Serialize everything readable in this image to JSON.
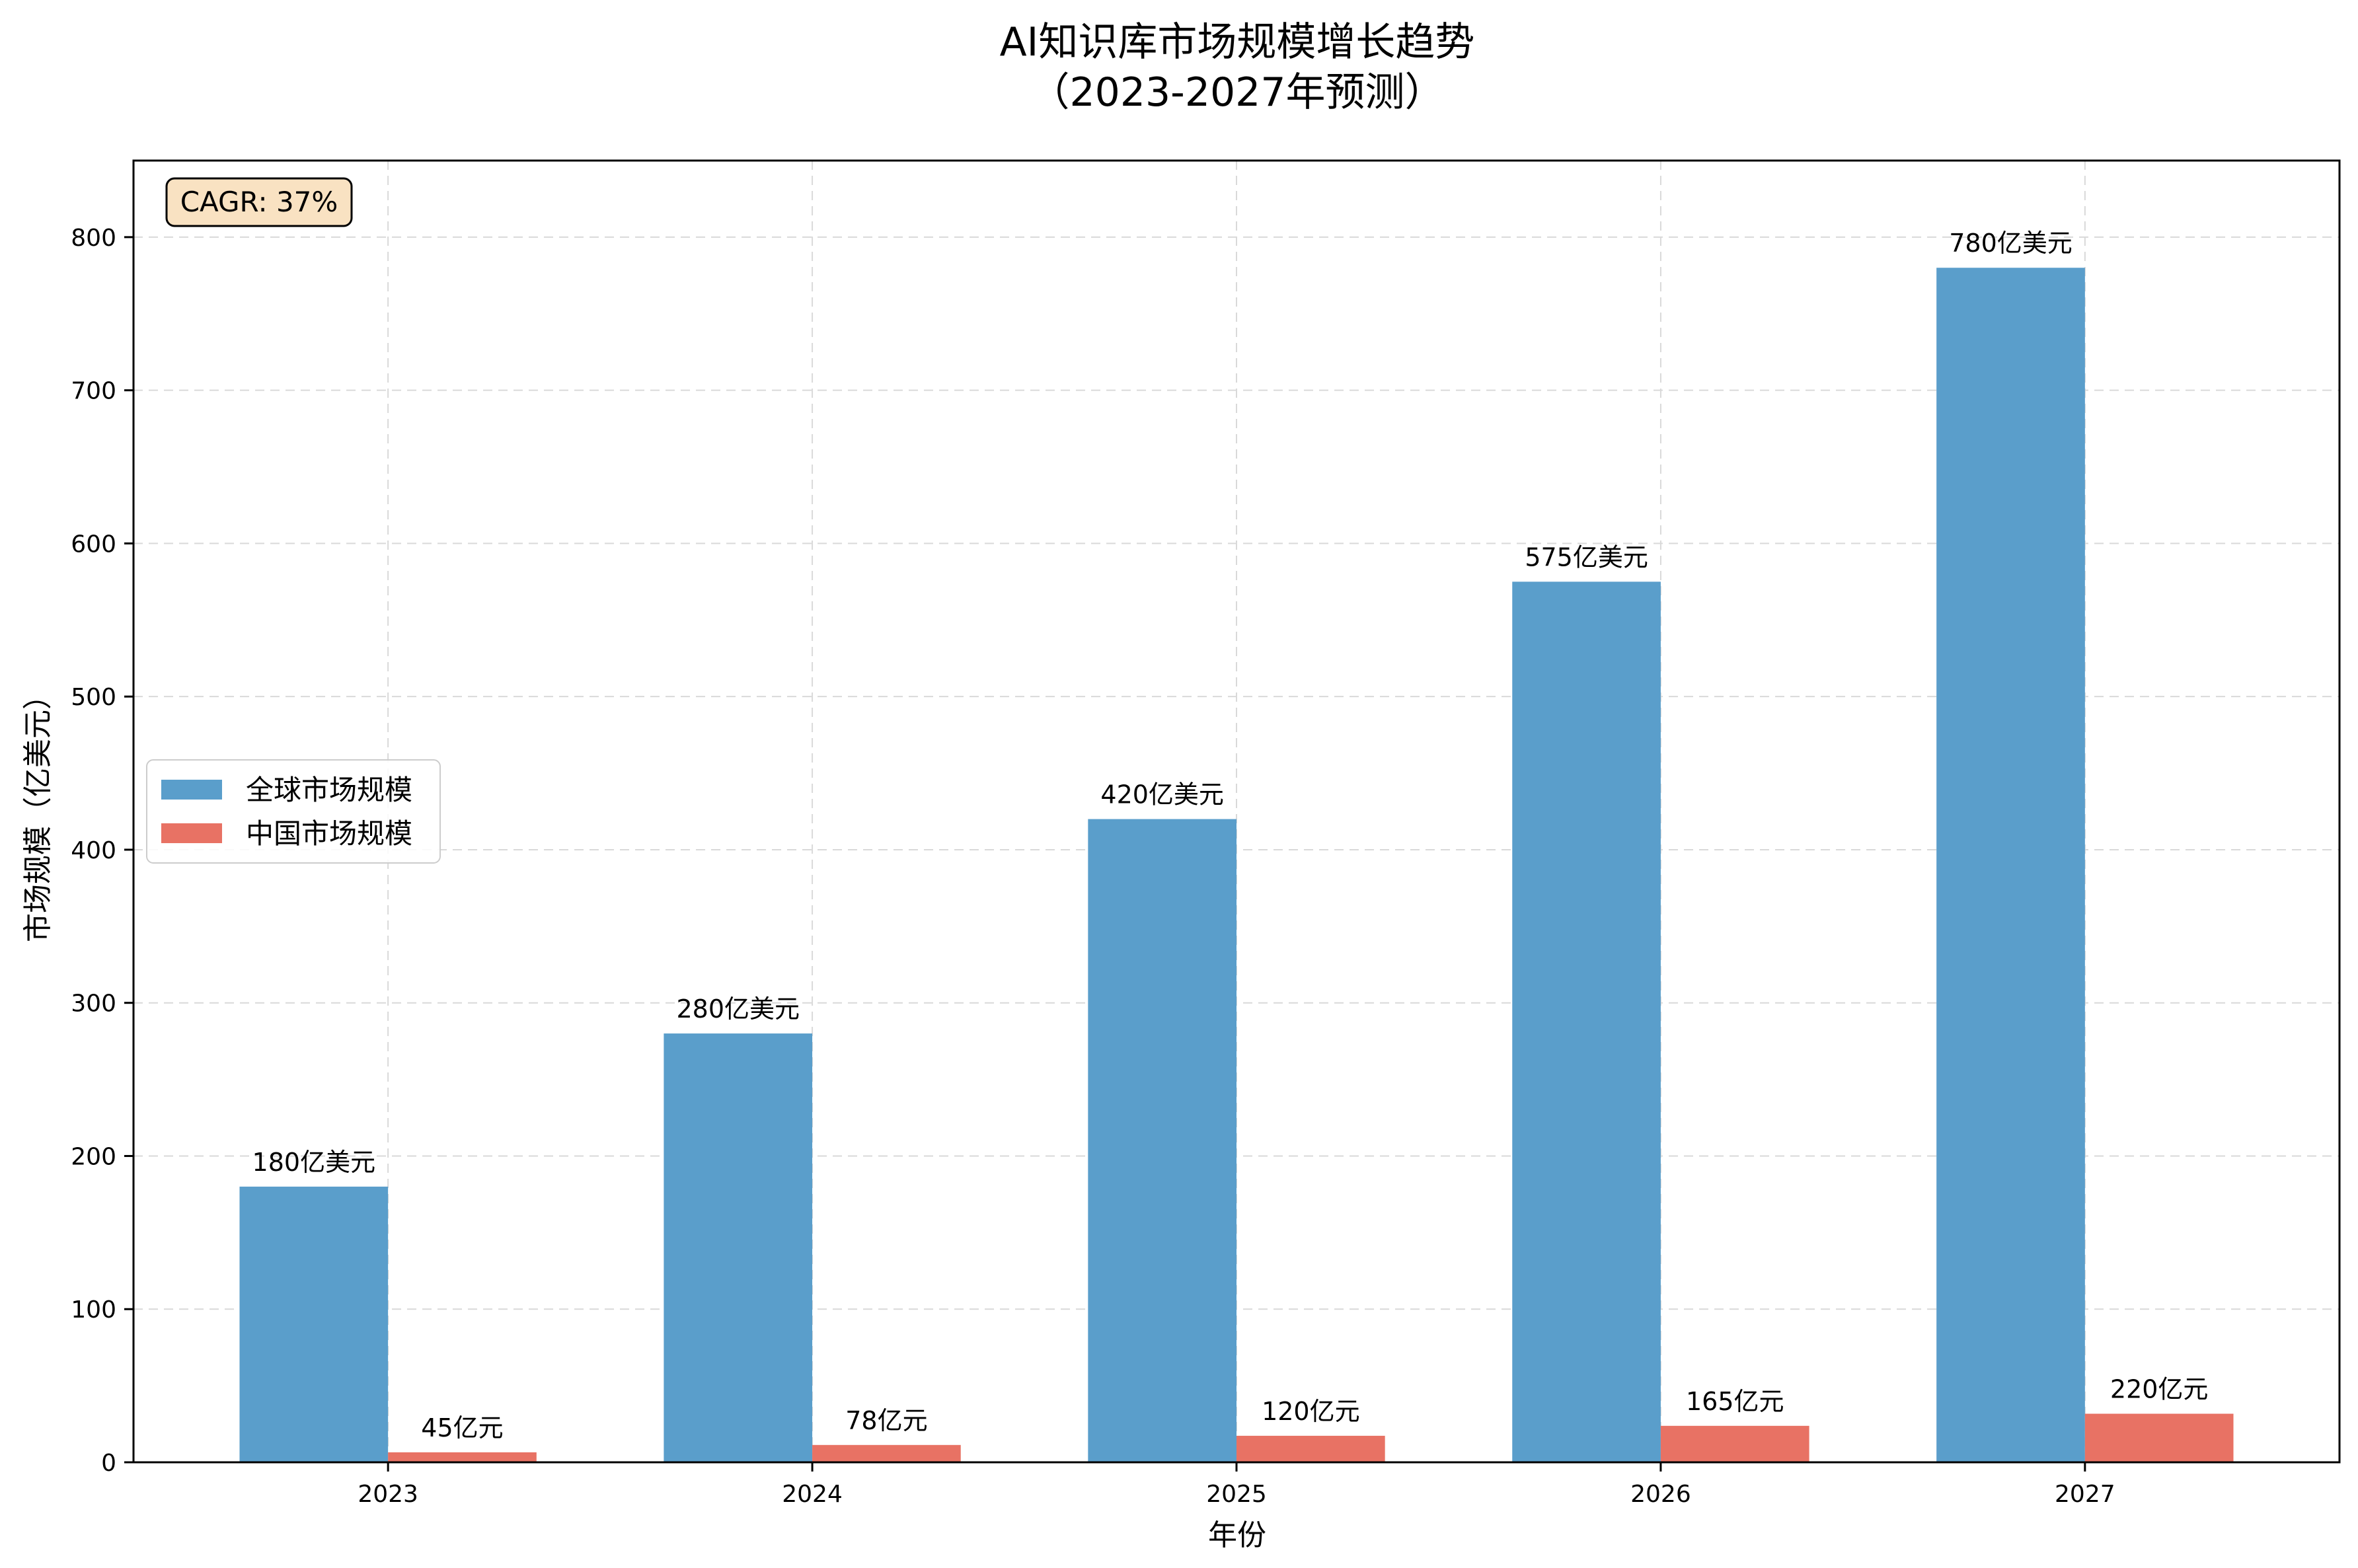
{
  "chart_data": {
    "type": "bar",
    "title_line1": "AI知识库市场规模增长趋势",
    "title_line2": "（2023-2027年预测）",
    "xlabel": "年份",
    "ylabel": "市场规模（亿美元）",
    "categories": [
      "2023",
      "2024",
      "2025",
      "2026",
      "2027"
    ],
    "ylim": [
      0,
      850
    ],
    "yticks": [
      0,
      100,
      200,
      300,
      400,
      500,
      600,
      700,
      800
    ],
    "grid": true,
    "legend_position": "center-left",
    "series": [
      {
        "name": "全球市场规模",
        "color": "#5a9ecb",
        "values": [
          180,
          280,
          420,
          575,
          780
        ],
        "labels": [
          "180亿美元",
          "280亿美元",
          "420亿美元",
          "575亿美元",
          "780亿美元"
        ]
      },
      {
        "name": "中国市场规模",
        "color": "#e87264",
        "values": [
          6.5,
          11.3,
          17.3,
          23.8,
          31.7
        ],
        "labels": [
          "45亿元",
          "78亿元",
          "120亿元",
          "165亿元",
          "220亿元"
        ]
      }
    ],
    "annotation": "CAGR: 37%"
  }
}
